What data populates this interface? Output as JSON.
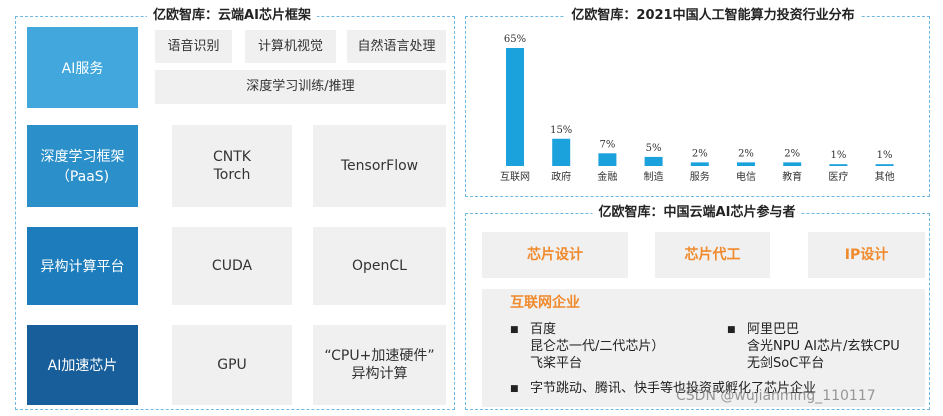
{
  "framework": {
    "title": "亿欧智库：云端AI芯片框架",
    "rows": [
      {
        "label": [
          "AI服务"
        ],
        "items": [
          [
            "语音识别"
          ],
          [
            "计算机视觉"
          ],
          [
            "自然语言处理"
          ],
          [
            "深度学习训练/推理"
          ]
        ]
      },
      {
        "label": [
          "深度学习框架",
          "（PaaS)"
        ],
        "items": [
          [
            "CNTK",
            "Torch"
          ],
          [
            "TensorFlow"
          ]
        ]
      },
      {
        "label": [
          "异构计算平台"
        ],
        "items": [
          [
            "CUDA"
          ],
          [
            "OpenCL"
          ]
        ]
      },
      {
        "label": [
          "AI加速芯片"
        ],
        "items": [
          [
            "GPU"
          ],
          [
            "“CPU+加速硬件”",
            "异构计算"
          ]
        ]
      }
    ]
  },
  "chart_data": {
    "type": "bar",
    "title": "亿欧智库：2021中国人工智能算力投资行业分布",
    "categories": [
      "互联网",
      "政府",
      "金融",
      "制造",
      "服务",
      "电信",
      "教育",
      "医疗",
      "其他"
    ],
    "values": [
      65,
      15,
      7,
      5,
      2,
      2,
      2,
      1,
      1
    ],
    "value_labels": [
      "65%",
      "15%",
      "7%",
      "5%",
      "2%",
      "2%",
      "2%",
      "1%",
      "1%"
    ],
    "color": "#1ba1db"
  },
  "participants": {
    "title": "亿欧智库：中国云端AI芯片参与者",
    "categories": [
      "芯片设计",
      "芯片代工",
      "IP设计"
    ],
    "internet": {
      "heading": "互联网企业",
      "companies": [
        {
          "name": "百度",
          "lines": [
            "昆仑芯一代/二代芯片）",
            "飞桨平台"
          ]
        },
        {
          "name": "阿里巴巴",
          "lines": [
            "含光NPU AI芯片/玄铁CPU",
            "无剑SoC平台"
          ]
        }
      ],
      "note": "字节跳动、腾讯、快手等也投资或孵化了芯片企业"
    }
  },
  "watermark": "CSDN @wujianming_110117"
}
